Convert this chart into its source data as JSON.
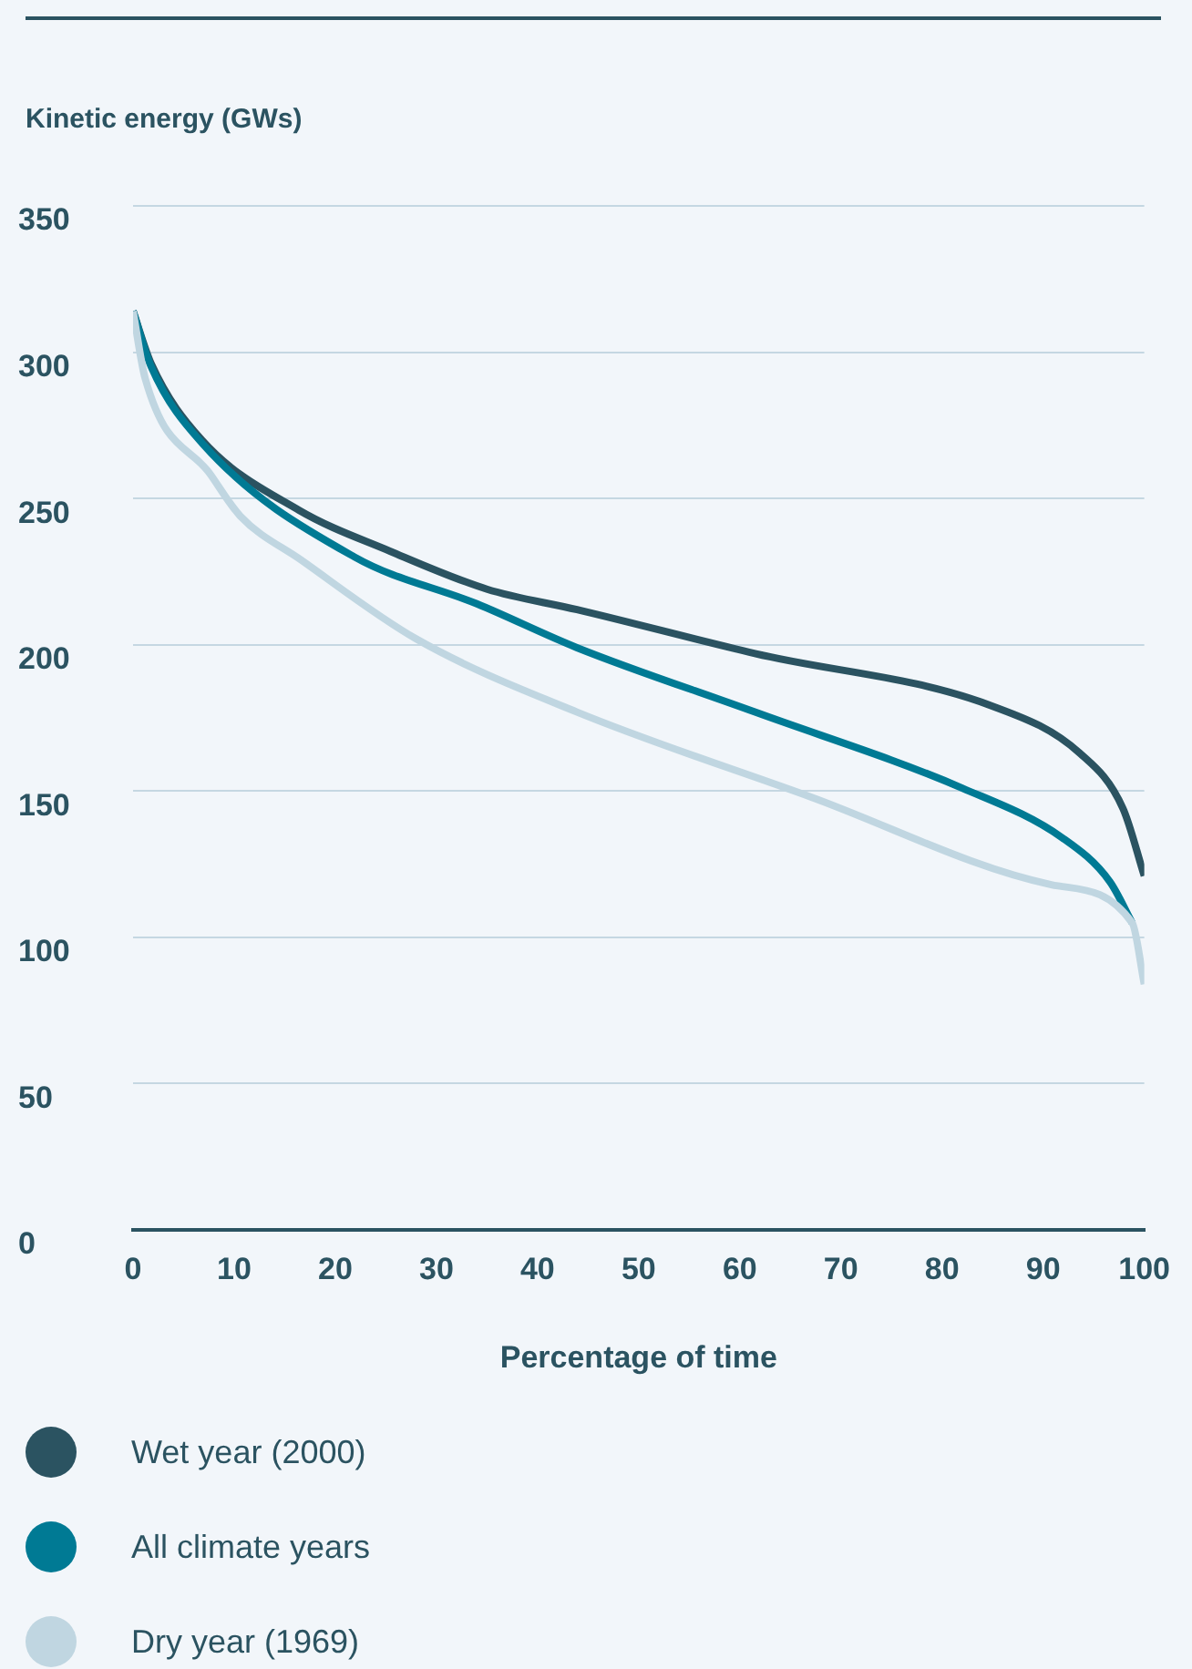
{
  "chart_data": {
    "type": "line",
    "ylabel": "Kinetic energy (GWs)",
    "xlabel": "Percentage of time",
    "xlim": [
      0,
      100
    ],
    "xticks": [
      0,
      10,
      20,
      30,
      40,
      50,
      60,
      70,
      80,
      90,
      100
    ],
    "ylim": [
      0,
      350
    ],
    "yticks": [
      0,
      50,
      100,
      150,
      200,
      250,
      300,
      350
    ],
    "grid": "y",
    "legend": "bottom",
    "marker": "none",
    "line_style": "solid",
    "series": [
      {
        "name": "Wet year (2000)",
        "color": "#2b5361",
        "x": [
          0,
          1.8,
          6.8,
          16.4,
          25.4,
          35,
          43.9,
          61.5,
          85,
          93.6,
          97.9,
          100
        ],
        "values": [
          314,
          296,
          270,
          246,
          232,
          219,
          212,
          197,
          179,
          163,
          144,
          121
        ]
      },
      {
        "name": "All climate years",
        "color": "#007a94",
        "x": [
          0,
          1.8,
          6.8,
          21.9,
          34,
          43.9,
          61.5,
          82,
          91.9,
          96.6,
          98.8
        ],
        "values": [
          314,
          295,
          269,
          230,
          214,
          199,
          177,
          151,
          134,
          119,
          105
        ]
      },
      {
        "name": "Dry year (1969)",
        "color": "#c0d6e1",
        "x": [
          0,
          1.2,
          7.7,
          10.6,
          16.6,
          28,
          43.9,
          67,
          90.8,
          98.8,
          100
        ],
        "values": [
          314,
          291,
          258,
          244,
          229,
          202,
          177,
          148,
          118,
          105,
          84
        ]
      }
    ]
  }
}
